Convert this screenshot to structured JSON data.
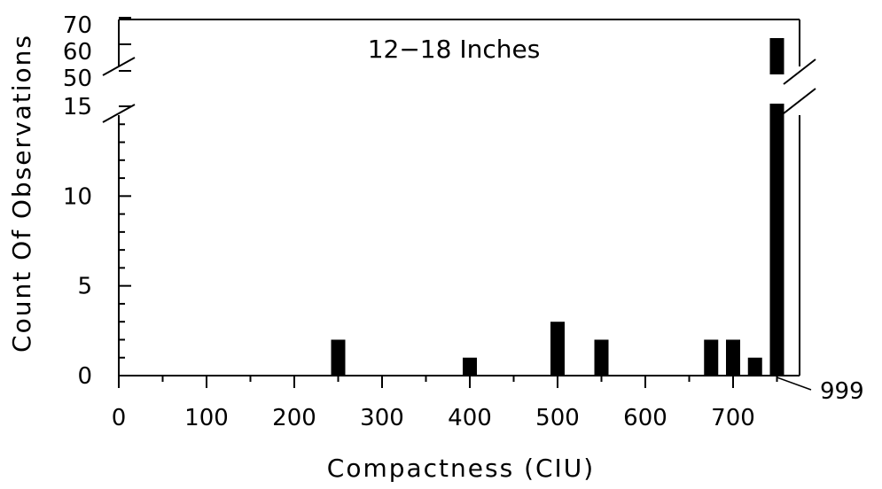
{
  "chart_data": {
    "type": "bar",
    "title": "12−18 Inches",
    "xlabel": "Compactness (CIU)",
    "ylabel": "Count Of Observations",
    "x_ticks": [
      0,
      100,
      200,
      300,
      400,
      500,
      600,
      700
    ],
    "x_tick_labels": [
      "0",
      "100",
      "200",
      "300",
      "400",
      "500",
      "600",
      "700"
    ],
    "y_ticks_lower": [
      0,
      5,
      10,
      15
    ],
    "y_ticks_lower_labels": [
      "0",
      "5",
      "10",
      "15"
    ],
    "y_ticks_upper": [
      50,
      60,
      70
    ],
    "y_ticks_upper_labels": [
      "50",
      "60",
      "70"
    ],
    "special_category_label": "999",
    "special_category_position": 750,
    "xlim": [
      0,
      780
    ],
    "ylim_lower": [
      0,
      15
    ],
    "ylim_upper": [
      50,
      70
    ],
    "axis_break": true,
    "bar_color": "#000000",
    "bars": [
      {
        "x": 250,
        "value": 2
      },
      {
        "x": 400,
        "value": 1
      },
      {
        "x": 500,
        "value": 3
      },
      {
        "x": 550,
        "value": 2
      },
      {
        "x": 675,
        "value": 2
      },
      {
        "x": 700,
        "value": 2
      },
      {
        "x": 725,
        "value": 1
      },
      {
        "x": 750,
        "value": 65,
        "label": "999"
      }
    ]
  }
}
